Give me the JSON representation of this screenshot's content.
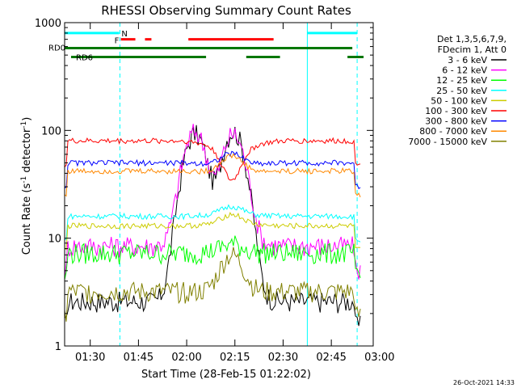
{
  "chart_data": {
    "type": "line",
    "title": "RHESSI Observing Summary Count Rates",
    "xlabel": "Start Time (28-Feb-15 01:22:02)",
    "ylabel_main": "Count Rate (s",
    "ylabel_sup1": "-1",
    "ylabel_mid": " detector",
    "ylabel_sup2": "-1",
    "ylabel_end": ")",
    "y_scale": "log",
    "ylim": [
      1,
      1000
    ],
    "xlim_minutes": [
      0,
      96
    ],
    "x_ticks": [
      {
        "m": 7.97,
        "label": "01:30"
      },
      {
        "m": 22.97,
        "label": "01:45"
      },
      {
        "m": 37.97,
        "label": "02:00"
      },
      {
        "m": 52.97,
        "label": "02:15"
      },
      {
        "m": 67.97,
        "label": "02:30"
      },
      {
        "m": 82.97,
        "label": "02:45"
      },
      {
        "m": 97.97,
        "label": "03:00"
      }
    ],
    "y_ticks": [
      {
        "v": 1,
        "label": "1"
      },
      {
        "v": 10,
        "label": "10"
      },
      {
        "v": 100,
        "label": "100"
      },
      {
        "v": 1000,
        "label": "1000"
      }
    ],
    "legend_header": [
      "Det 1,3,5,6,7,9,",
      "FDecim 1, Att 0"
    ],
    "series": [
      {
        "name": "3 - 6 keV",
        "color": "#000000",
        "base": 2.6,
        "peaks": [
          {
            "t": 40.5,
            "v": 90
          },
          {
            "t": 52.5,
            "v": 88
          }
        ],
        "dip": 1.6
      },
      {
        "name": "6 - 12 keV",
        "color": "#ff00ff",
        "base": 8.5,
        "peaks": [
          {
            "t": 40.5,
            "v": 95
          },
          {
            "t": 52.5,
            "v": 85
          }
        ],
        "dip": 1.4
      },
      {
        "name": "12 - 25 keV",
        "color": "#00ff00",
        "base": 7.3,
        "peaks": [
          {
            "t": 52,
            "v": 8.5
          }
        ],
        "dip": 1.2
      },
      {
        "name": "25 - 50 keV",
        "color": "#00ffff",
        "base": 16,
        "peaks": [
          {
            "t": 52,
            "v": 19
          }
        ],
        "dip": 1.2
      },
      {
        "name": "50 - 100 keV",
        "color": "#cccc00",
        "base": 13,
        "peaks": [
          {
            "t": 52,
            "v": 16
          }
        ],
        "dip": 1.2
      },
      {
        "name": "100 - 300 keV",
        "color": "#ff0000",
        "base": 80,
        "peaks": [
          {
            "t": 52,
            "v": 40
          }
        ],
        "dip": 0.3
      },
      {
        "name": "300 - 800 keV",
        "color": "#0000ff",
        "base": 50,
        "peaks": [
          {
            "t": 52,
            "v": 63
          }
        ],
        "dip": 0.85
      },
      {
        "name": "800 - 7000 keV",
        "color": "#ff8800",
        "base": 42,
        "peaks": [
          {
            "t": 52,
            "v": 60
          }
        ],
        "dip": 0.85
      },
      {
        "name": "7000 - 15000 keV",
        "color": "#808000",
        "base": 3.2,
        "peaks": [
          {
            "t": 52,
            "v": 7
          }
        ],
        "dip": 1.0
      }
    ],
    "flag_bars": [
      {
        "label": "N",
        "color": "#00ffff",
        "segments": [
          [
            0,
            17
          ],
          [
            75.5,
            91
          ]
        ],
        "level": 800
      },
      {
        "label": "F",
        "color": "#ff0000",
        "segments": [
          [
            17.5,
            22
          ],
          [
            25,
            27
          ],
          [
            38.5,
            65
          ]
        ],
        "level": 700
      },
      {
        "label": "RD0",
        "color": "#007700",
        "segments": [
          [
            0,
            89.5
          ]
        ],
        "level": 580
      },
      {
        "label": "RD6",
        "color": "#007700",
        "segments": [
          [
            2,
            44
          ],
          [
            56.5,
            67
          ],
          [
            88,
            93
          ]
        ],
        "level": 480
      }
    ],
    "vertical_markers": {
      "solid_cyan": [
        0.0,
        75.5
      ],
      "dashed_cyan": [
        17.2,
        91.0
      ]
    },
    "footer_stamp": "26-Oct-2021 14:33"
  }
}
